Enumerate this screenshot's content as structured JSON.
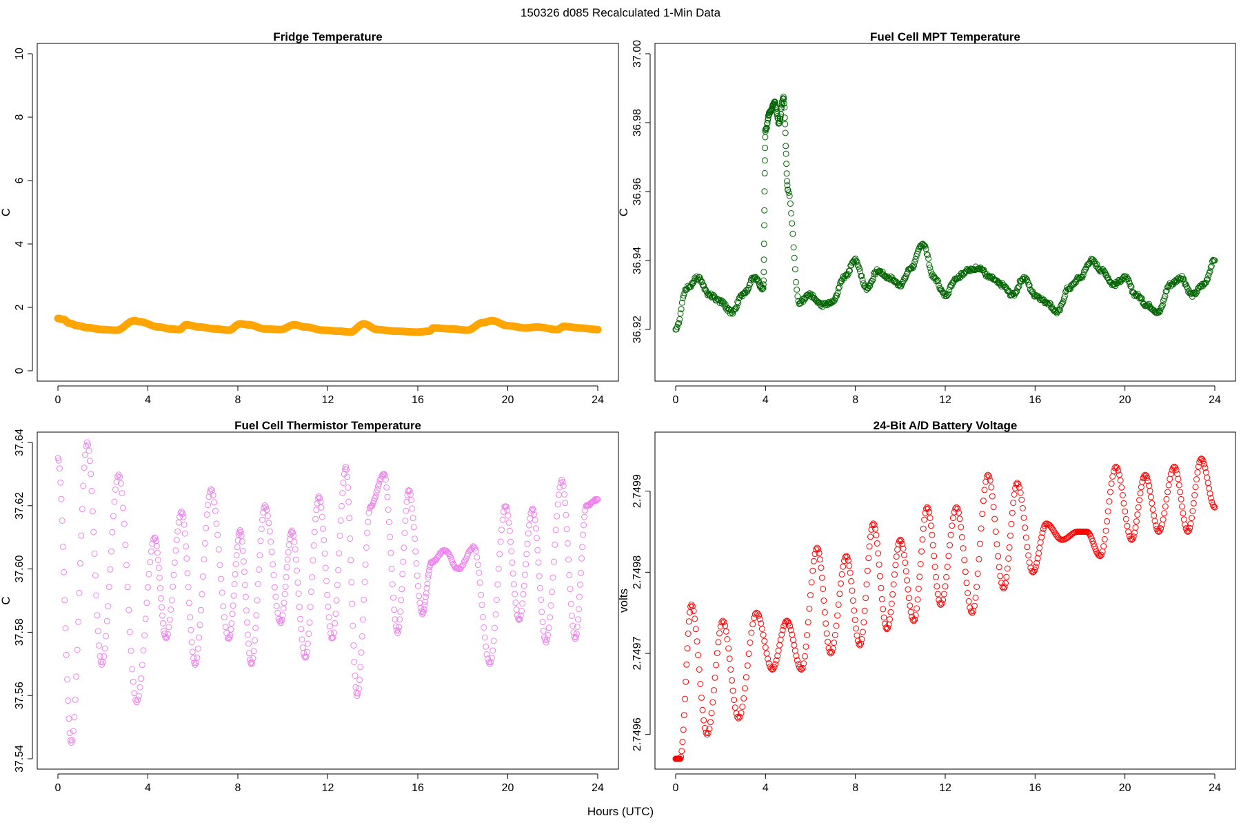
{
  "page": {
    "suptitle": "150326   d085   Recalculated 1-Min Data",
    "xlabel": "Hours (UTC)"
  },
  "chart_data": [
    {
      "type": "scatter",
      "title": "Fridge Temperature",
      "ylabel": "C",
      "color": "#ffa500",
      "marker": "filled",
      "xlim": [
        0,
        24
      ],
      "ylim": [
        0,
        10
      ],
      "xticks": [
        0,
        4,
        8,
        12,
        16,
        20,
        24
      ],
      "yticks": [
        0,
        2,
        4,
        6,
        8,
        10
      ],
      "ytick_labels": [
        "0",
        "2",
        "4",
        "6",
        "8",
        "10"
      ],
      "series": [
        {
          "name": "fridge",
          "x": [
            0,
            0.25,
            0.5,
            0.9,
            1.3,
            2,
            2.6,
            3.4,
            3.6,
            4.5,
            5,
            5.4,
            5.7,
            6.3,
            7,
            7.6,
            8.1,
            8.5,
            9.2,
            9.9,
            10.5,
            11,
            11.8,
            12.5,
            13,
            13.6,
            14.2,
            15,
            16,
            16.5,
            16.7,
            17.5,
            18.2,
            18.9,
            19.3,
            20,
            20.8,
            21.3,
            22.2,
            22.5,
            23.2,
            24
          ],
          "y": [
            1.65,
            1.62,
            1.5,
            1.42,
            1.36,
            1.3,
            1.28,
            1.58,
            1.55,
            1.38,
            1.32,
            1.3,
            1.45,
            1.38,
            1.32,
            1.28,
            1.48,
            1.45,
            1.32,
            1.3,
            1.45,
            1.38,
            1.28,
            1.25,
            1.22,
            1.48,
            1.3,
            1.25,
            1.22,
            1.25,
            1.35,
            1.32,
            1.28,
            1.52,
            1.58,
            1.42,
            1.35,
            1.38,
            1.3,
            1.4,
            1.35,
            1.3
          ]
        }
      ]
    },
    {
      "type": "scatter",
      "title": "Fuel Cell MPT Temperature",
      "ylabel": "C",
      "color": "#006400",
      "marker": "open",
      "xlim": [
        0,
        24
      ],
      "ylim": [
        36.908,
        37.0
      ],
      "xticks": [
        0,
        4,
        8,
        12,
        16,
        20,
        24
      ],
      "yticks": [
        36.92,
        36.94,
        36.96,
        36.98,
        37.0
      ],
      "ytick_labels": [
        "36.92",
        "36.94",
        "36.96",
        "36.98",
        "37.00"
      ],
      "series": [
        {
          "name": "mpt",
          "x": [
            0,
            0.5,
            1,
            1.5,
            2,
            2.5,
            3,
            3.5,
            3.9,
            4,
            4.2,
            4.4,
            4.6,
            4.8,
            5,
            5.5,
            6,
            6.5,
            7,
            7.5,
            8,
            8.5,
            9,
            9.5,
            10,
            10.5,
            11,
            11.5,
            12,
            12.5,
            13,
            13.5,
            14,
            14.5,
            15,
            15.5,
            16,
            16.5,
            17,
            17.5,
            18,
            18.5,
            19,
            19.5,
            20,
            20.5,
            21,
            21.5,
            22,
            22.5,
            23,
            23.5,
            24
          ],
          "y": [
            36.92,
            36.932,
            36.935,
            36.93,
            36.928,
            36.925,
            36.93,
            36.935,
            36.932,
            36.978,
            36.983,
            36.986,
            36.98,
            36.987,
            36.96,
            36.928,
            36.93,
            36.927,
            36.928,
            36.935,
            36.94,
            36.932,
            36.937,
            36.935,
            36.933,
            36.938,
            36.945,
            36.935,
            36.93,
            36.935,
            36.937,
            36.938,
            36.935,
            36.933,
            36.93,
            36.935,
            36.93,
            36.928,
            36.925,
            36.932,
            36.935,
            36.94,
            36.937,
            36.933,
            36.935,
            36.93,
            36.927,
            36.925,
            36.933,
            36.935,
            36.93,
            36.933,
            36.94
          ]
        }
      ]
    },
    {
      "type": "scatter",
      "title": "Fuel Cell Thermistor Temperature",
      "ylabel": "C",
      "color": "#ee82ee",
      "marker": "open",
      "xlim": [
        0,
        24
      ],
      "ylim": [
        37.54,
        37.64
      ],
      "xticks": [
        0,
        4,
        8,
        12,
        16,
        20,
        24
      ],
      "yticks": [
        37.54,
        37.56,
        37.58,
        37.6,
        37.62,
        37.64
      ],
      "ytick_labels": [
        "37.54",
        "37.56",
        "37.58",
        "37.60",
        "37.62",
        "37.64"
      ],
      "series": [
        {
          "name": "thermistor",
          "x": [
            0,
            0.6,
            1.3,
            1.95,
            2.7,
            3.5,
            4.3,
            4.8,
            5.5,
            6.1,
            6.8,
            7.6,
            8.1,
            8.6,
            9.2,
            9.9,
            10.4,
            11,
            11.6,
            12.2,
            12.8,
            13.3,
            13.9,
            14.5,
            15.1,
            15.6,
            16.2,
            16.6,
            17.2,
            17.8,
            18.5,
            19.2,
            19.9,
            20.5,
            21.1,
            21.7,
            22.4,
            23,
            23.5,
            24
          ],
          "y": [
            37.635,
            37.545,
            37.64,
            37.57,
            37.63,
            37.558,
            37.61,
            37.578,
            37.618,
            37.57,
            37.625,
            37.578,
            37.612,
            37.57,
            37.62,
            37.583,
            37.612,
            37.572,
            37.623,
            37.578,
            37.632,
            37.56,
            37.62,
            37.63,
            37.58,
            37.625,
            37.586,
            37.602,
            37.606,
            37.6,
            37.607,
            37.57,
            37.62,
            37.584,
            37.619,
            37.577,
            37.628,
            37.578,
            37.62,
            37.622
          ]
        }
      ]
    },
    {
      "type": "scatter",
      "title": "24-Bit A/D Battery Voltage",
      "ylabel": "volts",
      "color": "#ff0000",
      "marker": "open",
      "xlim": [
        0,
        24
      ],
      "ylim": [
        2.74957,
        2.74996
      ],
      "xticks": [
        0,
        4,
        8,
        12,
        16,
        20,
        24
      ],
      "yticks": [
        2.7496,
        2.7497,
        2.7498,
        2.7499
      ],
      "ytick_labels": [
        "2.7496",
        "2.7497",
        "2.7498",
        "2.7499"
      ],
      "series": [
        {
          "name": "battery",
          "x": [
            0,
            0.2,
            0.7,
            1.4,
            2.1,
            2.8,
            3.6,
            4.3,
            4.95,
            5.6,
            6.3,
            6.9,
            7.6,
            8.2,
            8.8,
            9.4,
            10,
            10.6,
            11.2,
            11.8,
            12.5,
            13.2,
            13.9,
            14.6,
            15.2,
            15.9,
            16.5,
            17.2,
            17.9,
            18.3,
            18.9,
            19.6,
            20.3,
            20.9,
            21.5,
            22.2,
            22.8,
            23.4,
            24
          ],
          "y": [
            2.74957,
            2.74957,
            2.74976,
            2.7496,
            2.74974,
            2.74962,
            2.74975,
            2.74968,
            2.74974,
            2.74968,
            2.74983,
            2.7497,
            2.74982,
            2.74971,
            2.74986,
            2.74973,
            2.74984,
            2.74974,
            2.74988,
            2.74976,
            2.74988,
            2.74975,
            2.74992,
            2.74978,
            2.74991,
            2.7498,
            2.74986,
            2.74984,
            2.74985,
            2.74985,
            2.74982,
            2.74993,
            2.74984,
            2.74992,
            2.74985,
            2.74993,
            2.74985,
            2.74994,
            2.74988
          ]
        }
      ]
    }
  ]
}
